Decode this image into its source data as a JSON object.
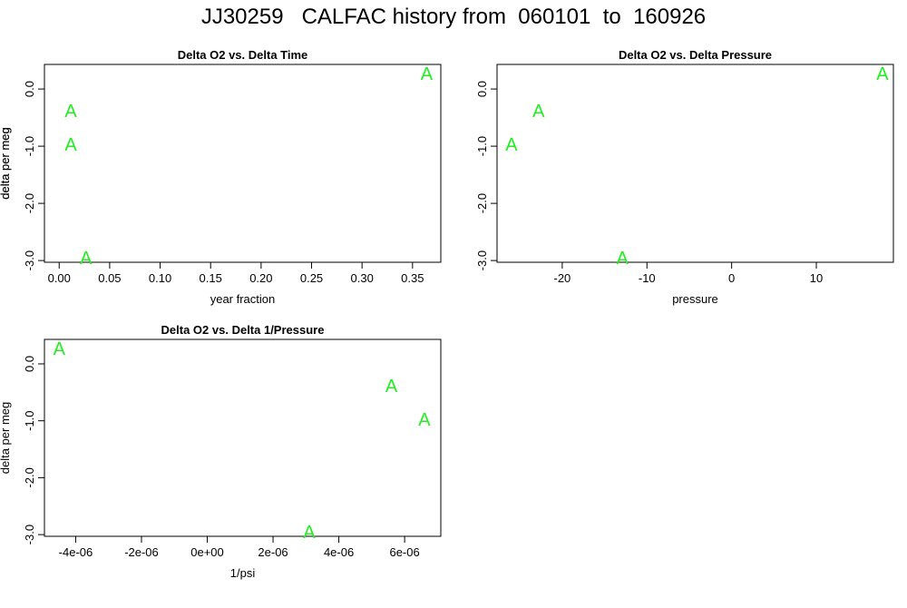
{
  "title": "JJ30259   CALFAC history from  060101  to  160926",
  "colors": {
    "point": "#22ee22",
    "axis": "#000000"
  },
  "chart_data": [
    {
      "type": "scatter",
      "title": "Delta O2 vs. Delta Time",
      "xlabel": "year fraction",
      "ylabel": "delta per meg",
      "marker": "A",
      "x_ticks": [
        "0.00",
        "0.05",
        "0.10",
        "0.15",
        "0.20",
        "0.25",
        "0.30",
        "0.35"
      ],
      "x_tick_values": [
        0,
        0.05,
        0.1,
        0.15,
        0.2,
        0.25,
        0.3,
        0.35
      ],
      "y_ticks": [
        "0.0",
        "-1.0",
        "-2.0",
        "-3.0"
      ],
      "y_tick_values": [
        0,
        -1,
        -2,
        -3
      ],
      "xlim": [
        -0.0146,
        0.378
      ],
      "ylim": [
        -3.03,
        0.43
      ],
      "points": [
        {
          "x": 0.0115,
          "y": -0.38
        },
        {
          "x": 0.0115,
          "y": -0.97
        },
        {
          "x": 0.0265,
          "y": -2.95
        },
        {
          "x": 0.364,
          "y": 0.27
        }
      ]
    },
    {
      "type": "scatter",
      "title": "Delta O2 vs. Delta Pressure",
      "xlabel": "pressure",
      "ylabel": "delta per meg",
      "marker": "A",
      "x_ticks": [
        "-20",
        "-10",
        "0",
        "10"
      ],
      "x_tick_values": [
        -20,
        -10,
        0,
        10
      ],
      "y_ticks": [
        "0.0",
        "-1.0",
        "-2.0",
        "-3.0"
      ],
      "y_tick_values": [
        0,
        -1,
        -2,
        -3
      ],
      "xlim": [
        -27.7,
        19.1
      ],
      "ylim": [
        -3.03,
        0.43
      ],
      "points": [
        {
          "x": -22.8,
          "y": -0.38
        },
        {
          "x": -26.0,
          "y": -0.97
        },
        {
          "x": -12.9,
          "y": -2.95
        },
        {
          "x": 17.8,
          "y": 0.27
        }
      ]
    },
    {
      "type": "scatter",
      "title": "Delta O2 vs. Delta 1/Pressure",
      "xlabel": "1/psi",
      "ylabel": "delta per meg",
      "marker": "A",
      "x_ticks": [
        "-4e-06",
        "-2e-06",
        "0e+00",
        "2e-06",
        "4e-06",
        "6e-06"
      ],
      "x_tick_values": [
        -4e-06,
        -2e-06,
        0,
        2e-06,
        4e-06,
        6e-06
      ],
      "y_ticks": [
        "0.0",
        "-1.0",
        "-2.0",
        "-3.0"
      ],
      "y_tick_values": [
        0,
        -1,
        -2,
        -3
      ],
      "xlim": [
        -4.95e-06,
        7.1e-06
      ],
      "ylim": [
        -3.03,
        0.43
      ],
      "points": [
        {
          "x": -4.5e-06,
          "y": 0.27
        },
        {
          "x": 5.6e-06,
          "y": -0.38
        },
        {
          "x": 6.6e-06,
          "y": -0.97
        },
        {
          "x": 3.1e-06,
          "y": -2.95
        }
      ]
    }
  ]
}
